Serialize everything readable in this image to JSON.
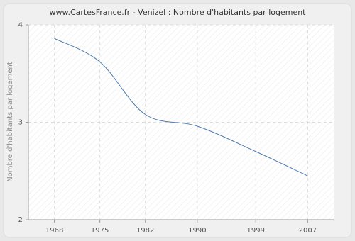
{
  "chart_data": {
    "type": "line",
    "title": "www.CartesFrance.fr - Venizel : Nombre d'habitants par logement",
    "y_label": "Nombre d'habitants par logement",
    "x": [
      1968,
      1975,
      1982,
      1990,
      1999,
      2007
    ],
    "series": [
      {
        "name": "Venizel",
        "color": "#4f7aad",
        "values": [
          3.86,
          3.62,
          3.08,
          2.96,
          2.7,
          2.45
        ]
      }
    ],
    "xlim": [
      1964,
      2011
    ],
    "ylim": [
      2,
      4
    ],
    "yticks": [
      2,
      3,
      4
    ],
    "grid": true
  }
}
